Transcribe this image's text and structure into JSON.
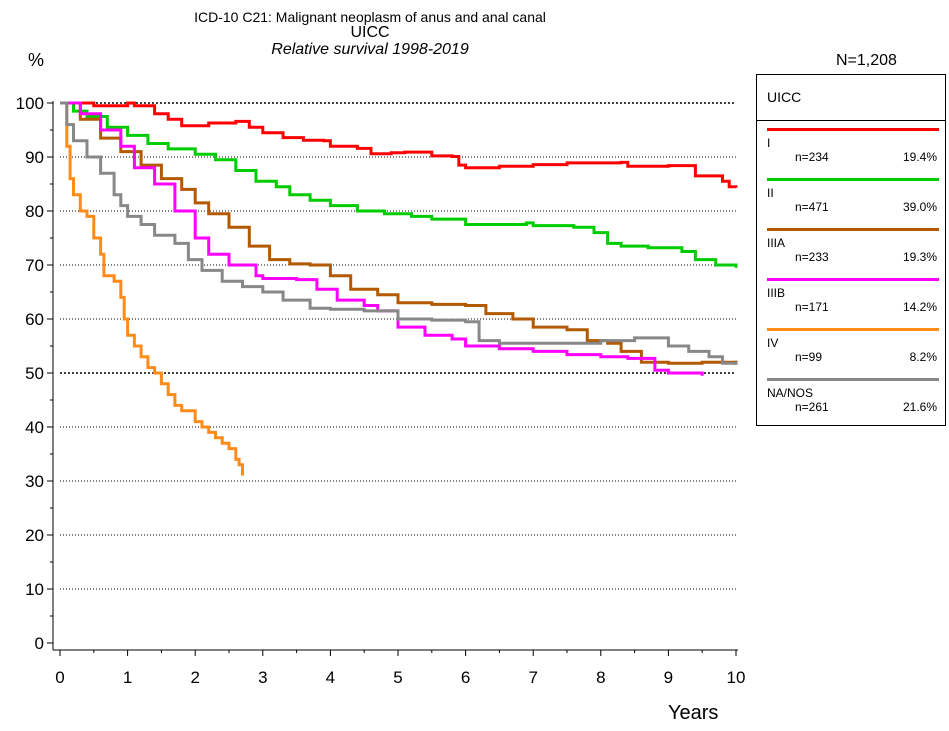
{
  "header": {
    "title_line1": "ICD-10 C21: Malignant neoplasm of anus and anal canal",
    "title_line2": "UICC",
    "subtitle": "Relative survival 1998-2019",
    "y_unit": "%",
    "total_n": "N=1,208",
    "x_axis_label": "Years"
  },
  "chart_data": {
    "type": "line",
    "title": "ICD-10 C21: Malignant neoplasm of anus and anal canal",
    "subtitle": "Relative survival 1998-2019",
    "xlabel": "Years",
    "ylabel": "%",
    "xlim": [
      0,
      10
    ],
    "ylim": [
      0,
      100
    ],
    "x_ticks": [
      "0",
      "1",
      "2",
      "3",
      "4",
      "5",
      "6",
      "7",
      "8",
      "9",
      "10"
    ],
    "y_ticks": [
      "0",
      "10",
      "20",
      "30",
      "40",
      "50",
      "60",
      "70",
      "80",
      "90",
      "100"
    ],
    "grid": "horizontal dotted at each 10%; bold at 50 and 100",
    "step": true,
    "legend_title": "UICC",
    "legend_position": "right",
    "series": [
      {
        "name": "I",
        "n_label": "n=234",
        "pct_label": "19.4%",
        "color": "#ff0000",
        "points": [
          [
            0,
            100
          ],
          [
            0.5,
            99.5
          ],
          [
            1,
            100
          ],
          [
            1.1,
            99.5
          ],
          [
            1.4,
            98
          ],
          [
            1.6,
            97
          ],
          [
            1.8,
            95.8
          ],
          [
            2.2,
            96.3
          ],
          [
            2.6,
            96.6
          ],
          [
            2.8,
            95.5
          ],
          [
            3,
            94.5
          ],
          [
            3.3,
            93.6
          ],
          [
            3.6,
            93.1
          ],
          [
            3.9,
            93
          ],
          [
            4,
            92
          ],
          [
            4.4,
            91.6
          ],
          [
            4.6,
            90.6
          ],
          [
            4.9,
            90.8
          ],
          [
            5.1,
            90.9
          ],
          [
            5.5,
            90.2
          ],
          [
            5.8,
            90.1
          ],
          [
            5.9,
            88.5
          ],
          [
            6,
            88
          ],
          [
            6.5,
            88.3
          ],
          [
            7,
            88.6
          ],
          [
            7.5,
            88.9
          ],
          [
            8.3,
            89
          ],
          [
            8.4,
            88.3
          ],
          [
            9,
            88.4
          ],
          [
            9.3,
            88.4
          ],
          [
            9.4,
            86.5
          ],
          [
            9.8,
            85.5
          ],
          [
            9.9,
            84.5
          ],
          [
            10,
            84.3
          ]
        ]
      },
      {
        "name": "II",
        "n_label": "n=471",
        "pct_label": "39.0%",
        "color": "#00cc00",
        "points": [
          [
            0,
            100
          ],
          [
            0.2,
            98.5
          ],
          [
            0.4,
            97.5
          ],
          [
            0.7,
            95.5
          ],
          [
            1,
            94
          ],
          [
            1.3,
            92.5
          ],
          [
            1.6,
            91.5
          ],
          [
            2,
            90.5
          ],
          [
            2.3,
            89.5
          ],
          [
            2.6,
            87.5
          ],
          [
            2.9,
            85.5
          ],
          [
            3.2,
            84.5
          ],
          [
            3.4,
            83
          ],
          [
            3.7,
            82
          ],
          [
            4,
            81
          ],
          [
            4.4,
            80
          ],
          [
            4.8,
            79.5
          ],
          [
            5.2,
            79
          ],
          [
            5.5,
            78.5
          ],
          [
            6,
            77.5
          ],
          [
            6.5,
            77.5
          ],
          [
            6.9,
            77.8
          ],
          [
            7,
            77.3
          ],
          [
            7.6,
            77
          ],
          [
            7.9,
            76
          ],
          [
            8.1,
            74
          ],
          [
            8.3,
            73.5
          ],
          [
            8.7,
            73.2
          ],
          [
            9.2,
            72.5
          ],
          [
            9.4,
            71
          ],
          [
            9.7,
            70
          ],
          [
            10,
            69.5
          ]
        ]
      },
      {
        "name": "IIIA",
        "n_label": "n=233",
        "pct_label": "19.3%",
        "color": "#b35900",
        "points": [
          [
            0,
            100
          ],
          [
            0.3,
            97
          ],
          [
            0.6,
            93.5
          ],
          [
            0.9,
            91
          ],
          [
            1.2,
            88.5
          ],
          [
            1.5,
            86
          ],
          [
            1.8,
            84
          ],
          [
            2,
            81.5
          ],
          [
            2.2,
            79.5
          ],
          [
            2.5,
            77
          ],
          [
            2.8,
            73.5
          ],
          [
            3.1,
            71
          ],
          [
            3.4,
            70.2
          ],
          [
            3.7,
            70
          ],
          [
            4,
            68
          ],
          [
            4.3,
            65.5
          ],
          [
            4.7,
            64.5
          ],
          [
            5,
            63
          ],
          [
            5.5,
            62.7
          ],
          [
            6,
            62.5
          ],
          [
            6.3,
            61
          ],
          [
            6.7,
            60
          ],
          [
            7,
            58.5
          ],
          [
            7.5,
            58
          ],
          [
            7.8,
            56
          ],
          [
            8.1,
            55.5
          ],
          [
            8.3,
            54
          ],
          [
            8.6,
            52
          ],
          [
            9,
            51.8
          ],
          [
            9.5,
            52
          ],
          [
            10,
            52.3
          ]
        ]
      },
      {
        "name": "IIIB",
        "n_label": "n=171",
        "pct_label": "14.2%",
        "color": "#ff00ff",
        "points": [
          [
            0,
            100
          ],
          [
            0.3,
            98
          ],
          [
            0.6,
            95
          ],
          [
            0.9,
            92
          ],
          [
            1.1,
            88
          ],
          [
            1.4,
            85
          ],
          [
            1.7,
            80
          ],
          [
            2,
            75
          ],
          [
            2.2,
            72
          ],
          [
            2.5,
            70
          ],
          [
            2.9,
            68
          ],
          [
            3,
            67.5
          ],
          [
            3.5,
            67.3
          ],
          [
            3.8,
            65.5
          ],
          [
            4.1,
            63.5
          ],
          [
            4.5,
            62.5
          ],
          [
            4.7,
            61.5
          ],
          [
            5,
            58.5
          ],
          [
            5.4,
            57
          ],
          [
            5.8,
            56.3
          ],
          [
            6,
            55
          ],
          [
            6.5,
            54.5
          ],
          [
            7,
            54
          ],
          [
            7.5,
            53.4
          ],
          [
            8,
            53
          ],
          [
            8.4,
            52.7
          ],
          [
            8.8,
            50.5
          ],
          [
            9,
            50
          ],
          [
            9.5,
            49.5
          ]
        ]
      },
      {
        "name": "IV",
        "n_label": "n=99",
        "pct_label": "8.2%",
        "color": "#ff8c1a",
        "points": [
          [
            0,
            100
          ],
          [
            0.1,
            92
          ],
          [
            0.15,
            86
          ],
          [
            0.2,
            83
          ],
          [
            0.3,
            80
          ],
          [
            0.4,
            79
          ],
          [
            0.5,
            75
          ],
          [
            0.6,
            72
          ],
          [
            0.65,
            68
          ],
          [
            0.8,
            67
          ],
          [
            0.9,
            64
          ],
          [
            0.95,
            60
          ],
          [
            1,
            57
          ],
          [
            1.1,
            55
          ],
          [
            1.2,
            53
          ],
          [
            1.3,
            51
          ],
          [
            1.4,
            50
          ],
          [
            1.5,
            48
          ],
          [
            1.6,
            46
          ],
          [
            1.7,
            44
          ],
          [
            1.8,
            43
          ],
          [
            2,
            41
          ],
          [
            2.1,
            40
          ],
          [
            2.2,
            39
          ],
          [
            2.3,
            38
          ],
          [
            2.4,
            37
          ],
          [
            2.5,
            36
          ],
          [
            2.6,
            34
          ],
          [
            2.65,
            33
          ],
          [
            2.7,
            31
          ]
        ]
      },
      {
        "name": "NA/NOS",
        "n_label": "n=261",
        "pct_label": "21.6%",
        "color": "#888888",
        "points": [
          [
            0,
            100
          ],
          [
            0.1,
            96
          ],
          [
            0.2,
            93
          ],
          [
            0.4,
            90
          ],
          [
            0.6,
            87
          ],
          [
            0.8,
            83
          ],
          [
            0.9,
            81
          ],
          [
            1,
            79
          ],
          [
            1.2,
            77.5
          ],
          [
            1.4,
            75.5
          ],
          [
            1.7,
            74
          ],
          [
            1.9,
            71
          ],
          [
            2.1,
            69
          ],
          [
            2.4,
            67
          ],
          [
            2.7,
            66
          ],
          [
            3,
            65
          ],
          [
            3.3,
            63.5
          ],
          [
            3.7,
            62
          ],
          [
            4,
            61.8
          ],
          [
            4.5,
            61.5
          ],
          [
            5,
            60
          ],
          [
            5.5,
            59.8
          ],
          [
            6,
            59.5
          ],
          [
            6.2,
            56
          ],
          [
            6.5,
            55.5
          ],
          [
            7,
            55.5
          ],
          [
            7.5,
            55.5
          ],
          [
            8,
            56
          ],
          [
            8.5,
            56.5
          ],
          [
            9,
            55
          ],
          [
            9.3,
            54
          ],
          [
            9.6,
            53
          ],
          [
            9.8,
            51.8
          ],
          [
            10,
            51.5
          ]
        ]
      }
    ]
  }
}
